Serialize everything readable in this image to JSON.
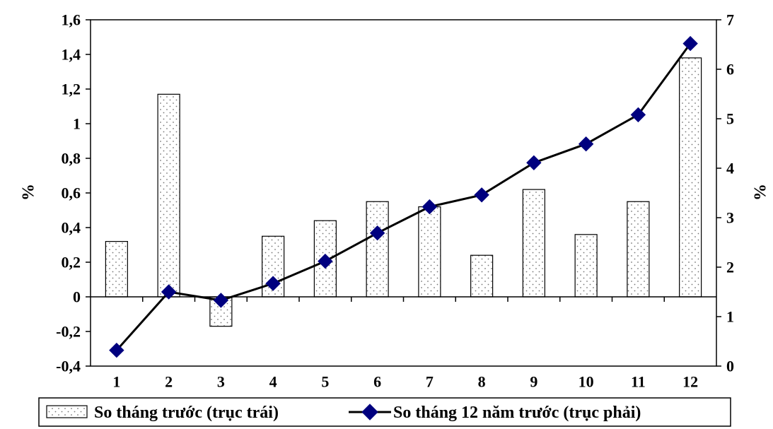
{
  "chart_data": {
    "type": "bar",
    "categories": [
      "1",
      "2",
      "3",
      "4",
      "5",
      "6",
      "7",
      "8",
      "9",
      "10",
      "11",
      "12"
    ],
    "series": [
      {
        "name": "So tháng trước (trục trái)",
        "type": "bar",
        "axis": "left",
        "values": [
          0.32,
          1.17,
          -0.17,
          0.35,
          0.44,
          0.55,
          0.52,
          0.24,
          0.62,
          0.36,
          0.55,
          1.38
        ]
      },
      {
        "name": "So tháng 12 năm trước (trục phải)",
        "type": "line",
        "axis": "right",
        "values": [
          0.32,
          1.5,
          1.33,
          1.67,
          2.12,
          2.69,
          3.22,
          3.46,
          4.11,
          4.49,
          5.08,
          6.52
        ]
      }
    ],
    "y_left": {
      "label": "%",
      "range": [
        -0.4,
        1.6
      ],
      "ticks": [
        "-0,4",
        "-0,2",
        "0",
        "0,2",
        "0,4",
        "0,6",
        "0,8",
        "1",
        "1,2",
        "1,4",
        "1,6"
      ]
    },
    "y_right": {
      "label": "%",
      "range": [
        0,
        7
      ],
      "ticks": [
        "0",
        "1",
        "2",
        "3",
        "4",
        "5",
        "6",
        "7"
      ]
    },
    "grid": false,
    "legend_position": "bottom",
    "colors": {
      "bar_fill": "#ffffff",
      "bar_stroke": "#000000",
      "bar_dots": "#777777",
      "line": "#000000",
      "marker": "#00007f"
    }
  }
}
